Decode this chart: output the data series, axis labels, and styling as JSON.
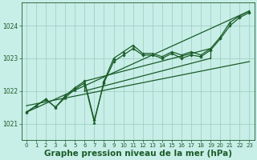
{
  "bg_color": "#c8eee8",
  "grid_color": "#99ccbb",
  "line_color": "#1a5c28",
  "xlabel": "Graphe pression niveau de la mer (hPa)",
  "xlabel_color": "#1a5c28",
  "xlabel_fontsize": 7.5,
  "tick_color": "#1a5c28",
  "ylim": [
    1020.5,
    1024.7
  ],
  "xlim": [
    -0.5,
    23.5
  ],
  "yticks": [
    1021,
    1022,
    1023,
    1024
  ],
  "xticks": [
    0,
    1,
    2,
    3,
    4,
    5,
    6,
    7,
    8,
    9,
    10,
    11,
    12,
    13,
    14,
    15,
    16,
    17,
    18,
    19,
    20,
    21,
    22,
    23
  ],
  "series": {
    "main": {
      "x": [
        0,
        1,
        2,
        3,
        4,
        5,
        6,
        7,
        8,
        9,
        10,
        11,
        12,
        13,
        14,
        15,
        16,
        17,
        18,
        19,
        20,
        21,
        22,
        23
      ],
      "y": [
        1021.35,
        1021.55,
        1021.75,
        1021.5,
        1021.8,
        1022.05,
        1022.25,
        1021.05,
        1022.3,
        1023.0,
        1023.2,
        1023.4,
        1023.15,
        1023.15,
        1023.05,
        1023.2,
        1023.1,
        1023.2,
        1023.1,
        1023.3,
        1023.65,
        1024.1,
        1024.3,
        1024.45
      ]
    },
    "line2": {
      "x": [
        0,
        1,
        2,
        3,
        4,
        5,
        6,
        7,
        8,
        9,
        10,
        11,
        12,
        13,
        14,
        15,
        16,
        17,
        18,
        19,
        20,
        21,
        22,
        23
      ],
      "y": [
        1021.35,
        1021.55,
        1021.75,
        1021.5,
        1021.85,
        1022.1,
        1022.3,
        1021.1,
        1022.25,
        1022.9,
        1023.1,
        1023.3,
        1023.1,
        1023.1,
        1023.0,
        1023.15,
        1023.0,
        1023.1,
        1023.05,
        1023.25,
        1023.6,
        1024.0,
        1024.25,
        1024.4
      ]
    },
    "trend1": {
      "x": [
        0,
        23
      ],
      "y": [
        1021.35,
        1024.45
      ]
    },
    "trend2": {
      "x": [
        0,
        23
      ],
      "y": [
        1021.55,
        1022.9
      ]
    },
    "env_x1": 6,
    "env_x2": 19,
    "env_y_top1": 1022.3,
    "env_y_top2": 1023.3,
    "env_y_bot1": 1022.0,
    "env_y_bot2": 1023.0
  }
}
